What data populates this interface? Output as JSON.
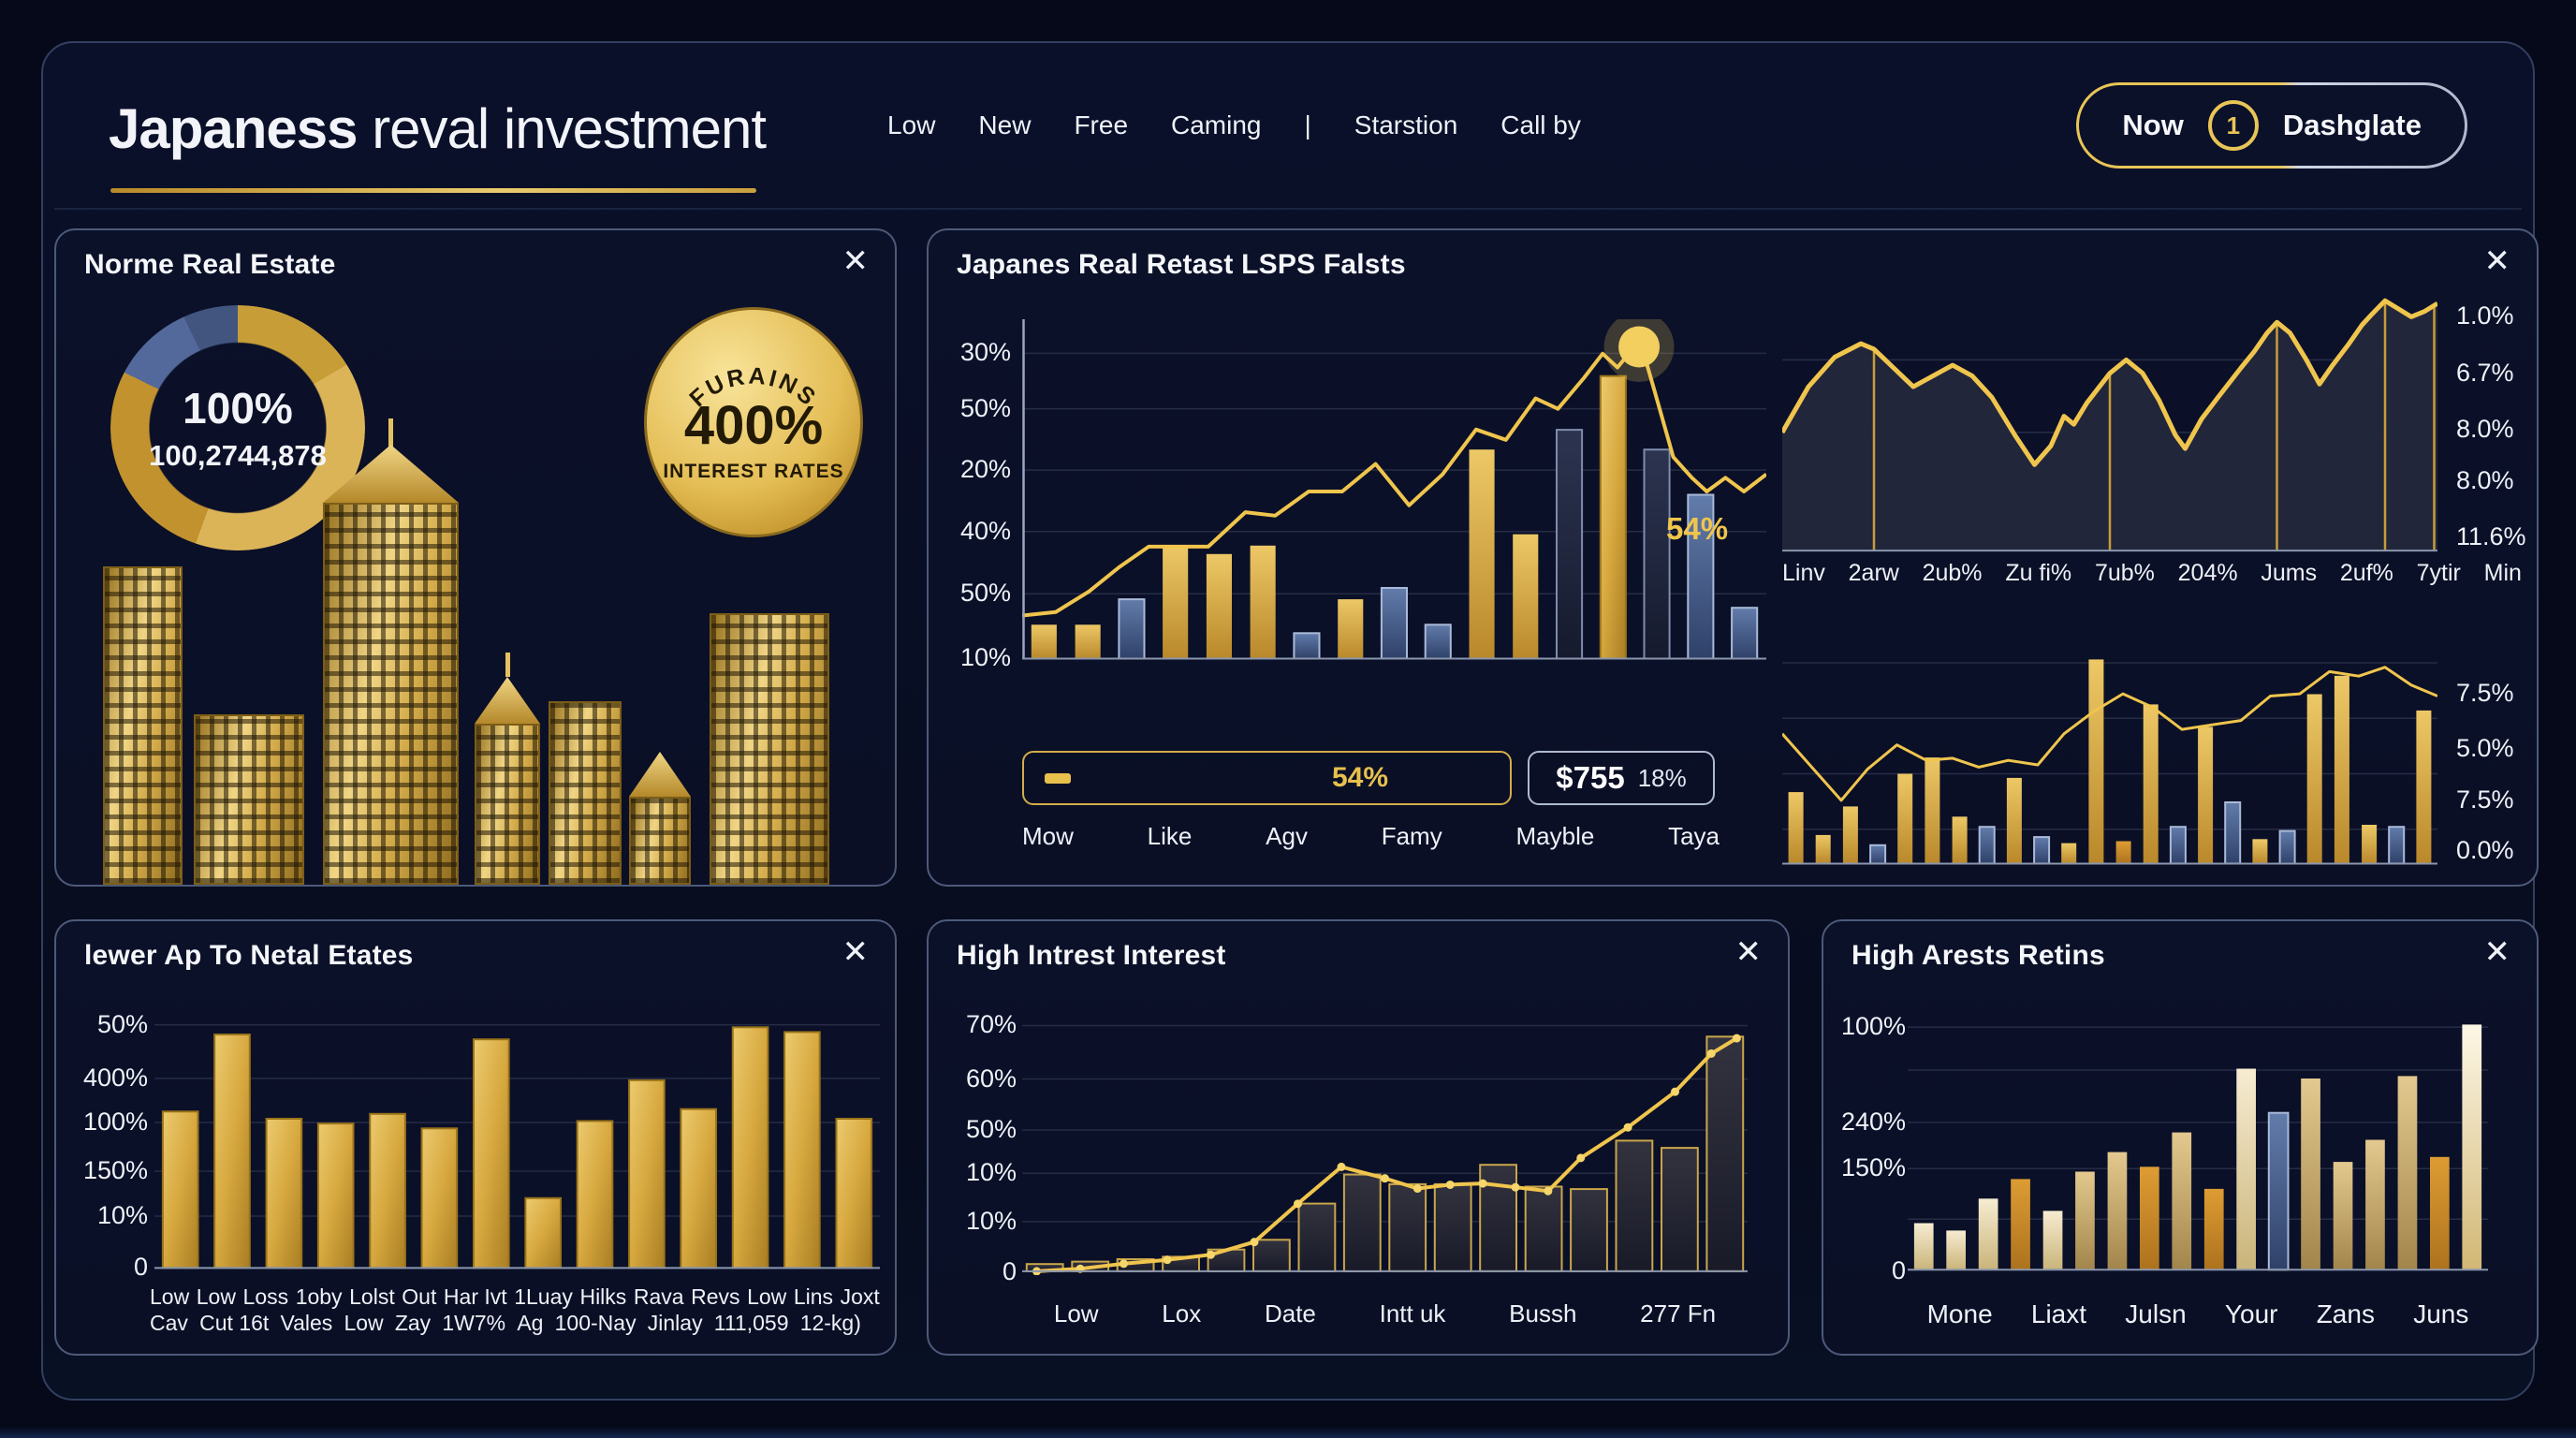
{
  "theme": {
    "gold": "#e9c557",
    "page_bg": "#05091a",
    "card_bg": "#0b1129",
    "blue_bar": "#54719f",
    "text": "#f2f4f9"
  },
  "ui": {
    "close_icon": "✕"
  },
  "header": {
    "title_bold": "Japaness",
    "title_rest": "reval investment",
    "nav": [
      "Low",
      "New",
      "Free",
      "Caming",
      "|",
      "Starstion",
      "Call by"
    ],
    "button": {
      "left": "Now",
      "badge": "1",
      "right": "Dashglate"
    }
  },
  "cards": {
    "home": {
      "title": "Norme Real Estate",
      "donut": {
        "percent": "100%",
        "value": "100,2744,878",
        "ring_gold": "#d4a93f",
        "ring_blue": "#4c66a0"
      },
      "badge": {
        "line1": "FURAINS",
        "line2": "400%",
        "line3": "INTEREST RATES"
      }
    },
    "market": {
      "title": "Japanes Real Retast LSPS Falsts",
      "left_chart": {
        "type": "bar-line",
        "y_labels": [
          "30%",
          "50%",
          "20%",
          "40%",
          "50%",
          "10%"
        ],
        "x_labels": [
          "Mow",
          "Like",
          "Agv",
          "Famy",
          "Mayble",
          "Taya"
        ],
        "annotation": "54%",
        "bars": {
          "values": [
            0.12,
            0.12,
            0.21,
            0.4,
            0.37,
            0.4,
            0.09,
            0.21,
            0.25,
            0.12,
            0.74,
            0.44,
            0.81,
            1.0,
            0.74,
            0.58,
            0.18
          ],
          "colors": [
            "gold",
            "gold",
            "blue",
            "gold",
            "gold",
            "gold",
            "blue",
            "gold",
            "blue",
            "blue",
            "gold",
            "gold",
            "navy",
            "goldtex",
            "navy",
            "blue",
            "blue"
          ]
        },
        "line": [
          [
            0,
            0.86
          ],
          [
            0.045,
            0.85
          ],
          [
            0.09,
            0.79
          ],
          [
            0.13,
            0.72
          ],
          [
            0.17,
            0.66
          ],
          [
            0.25,
            0.66
          ],
          [
            0.3,
            0.56
          ],
          [
            0.34,
            0.57
          ],
          [
            0.385,
            0.5
          ],
          [
            0.43,
            0.5
          ],
          [
            0.475,
            0.42
          ],
          [
            0.52,
            0.54
          ],
          [
            0.565,
            0.45
          ],
          [
            0.61,
            0.32
          ],
          [
            0.65,
            0.35
          ],
          [
            0.69,
            0.23
          ],
          [
            0.72,
            0.26
          ],
          [
            0.755,
            0.17
          ],
          [
            0.78,
            0.1
          ],
          [
            0.8,
            0.14
          ],
          [
            0.815,
            0.1
          ],
          [
            0.83,
            0.06
          ],
          [
            0.85,
            0.21
          ],
          [
            0.875,
            0.4
          ],
          [
            0.9,
            0.46
          ],
          [
            0.92,
            0.5
          ],
          [
            0.945,
            0.46
          ],
          [
            0.97,
            0.5
          ],
          [
            1.0,
            0.45
          ]
        ]
      },
      "controls": {
        "range": {
          "value": "54%"
        },
        "price": {
          "amount": "$755",
          "change": "18%"
        }
      },
      "right_top": {
        "type": "area",
        "x_labels": [
          "Linv",
          "2arw",
          "2ub%",
          "Zu fi%",
          "7ub%",
          "204%",
          "Jums",
          "2uf%",
          "7ytir",
          "Min"
        ],
        "y_labels": [
          "1.0%",
          "6.7%",
          "8.0%",
          "8.0%",
          "11.6%"
        ],
        "area": [
          [
            0,
            0.55
          ],
          [
            0.04,
            0.38
          ],
          [
            0.08,
            0.27
          ],
          [
            0.12,
            0.22
          ],
          [
            0.14,
            0.24
          ],
          [
            0.17,
            0.31
          ],
          [
            0.2,
            0.38
          ],
          [
            0.23,
            0.34
          ],
          [
            0.26,
            0.3
          ],
          [
            0.29,
            0.34
          ],
          [
            0.32,
            0.42
          ],
          [
            0.355,
            0.56
          ],
          [
            0.385,
            0.67
          ],
          [
            0.41,
            0.6
          ],
          [
            0.43,
            0.49
          ],
          [
            0.445,
            0.52
          ],
          [
            0.465,
            0.44
          ],
          [
            0.5,
            0.33
          ],
          [
            0.525,
            0.28
          ],
          [
            0.55,
            0.33
          ],
          [
            0.575,
            0.43
          ],
          [
            0.6,
            0.56
          ],
          [
            0.615,
            0.61
          ],
          [
            0.64,
            0.5
          ],
          [
            0.665,
            0.42
          ],
          [
            0.7,
            0.31
          ],
          [
            0.72,
            0.25
          ],
          [
            0.74,
            0.18
          ],
          [
            0.755,
            0.14
          ],
          [
            0.775,
            0.18
          ],
          [
            0.8,
            0.28
          ],
          [
            0.82,
            0.37
          ],
          [
            0.84,
            0.3
          ],
          [
            0.865,
            0.22
          ],
          [
            0.885,
            0.15
          ],
          [
            0.9,
            0.11
          ],
          [
            0.92,
            0.06
          ],
          [
            0.94,
            0.09
          ],
          [
            0.96,
            0.12
          ],
          [
            0.98,
            0.1
          ],
          [
            1.0,
            0.07
          ]
        ],
        "dividers": [
          [
            0.14,
            0.24
          ],
          [
            0.5,
            0.33
          ],
          [
            0.755,
            0.14
          ],
          [
            0.92,
            0.06
          ],
          [
            0.995,
            0.07
          ]
        ]
      },
      "right_bottom": {
        "type": "bar-line",
        "y_labels": [
          "7.5%",
          "5.0%",
          "7.5%",
          "0.0%"
        ],
        "bars": {
          "values": [
            0.35,
            0.14,
            0.28,
            0.09,
            0.44,
            0.52,
            0.23,
            0.18,
            0.42,
            0.13,
            0.1,
            1.0,
            0.11,
            0.78,
            0.18,
            0.67,
            0.3,
            0.12,
            0.16,
            0.83,
            0.92,
            0.19,
            0.18,
            0.75
          ],
          "colors": [
            "gold",
            "gold",
            "gold",
            "blue",
            "gold",
            "gold",
            "gold",
            "blue",
            "gold",
            "blue",
            "gold",
            "gold",
            "orange",
            "gold",
            "blue",
            "gold",
            "blue",
            "gold",
            "blue",
            "gold",
            "gold",
            "gold",
            "blue",
            "gold"
          ]
        },
        "line": [
          [
            0,
            0.4
          ],
          [
            0.045,
            0.55
          ],
          [
            0.09,
            0.7
          ],
          [
            0.13,
            0.56
          ],
          [
            0.175,
            0.45
          ],
          [
            0.22,
            0.52
          ],
          [
            0.26,
            0.51
          ],
          [
            0.3,
            0.55
          ],
          [
            0.345,
            0.52
          ],
          [
            0.39,
            0.54
          ],
          [
            0.43,
            0.4
          ],
          [
            0.475,
            0.3
          ],
          [
            0.52,
            0.22
          ],
          [
            0.565,
            0.28
          ],
          [
            0.61,
            0.38
          ],
          [
            0.655,
            0.36
          ],
          [
            0.7,
            0.34
          ],
          [
            0.745,
            0.23
          ],
          [
            0.79,
            0.22
          ],
          [
            0.835,
            0.12
          ],
          [
            0.88,
            0.14
          ],
          [
            0.92,
            0.1
          ],
          [
            0.96,
            0.18
          ],
          [
            1.0,
            0.23
          ]
        ]
      }
    },
    "lower": {
      "title": "lewer Ap To Netal Etates",
      "type": "bar",
      "y_labels": [
        "50%",
        "400%",
        "100%",
        "150%",
        "10%",
        "0"
      ],
      "bars": {
        "values": [
          0.65,
          0.97,
          0.62,
          0.6,
          0.64,
          0.58,
          0.95,
          0.29,
          0.61,
          0.78,
          0.66,
          1.0,
          0.98,
          0.62
        ],
        "color": "goldtex"
      },
      "x_labels_top": [
        "Low",
        "Low",
        "Loss",
        "1oby",
        "Lolst",
        "Out",
        "Har Ivt",
        "1Luay",
        "Hilks",
        "Rava",
        "Revs",
        "Low",
        "Lins",
        "Joxt"
      ],
      "x_labels_bottom": [
        "Cav",
        "Cut 16t",
        "Vales",
        "Low",
        "Zay",
        "1W7%",
        "Ag",
        "100-Nay",
        "Jinlay",
        "111,059",
        "12-kg)"
      ]
    },
    "interest": {
      "title": "High Intrest Interest",
      "type": "bar-line",
      "y_labels": [
        "70%",
        "60%",
        "50%",
        "10%",
        "10%",
        "0"
      ],
      "x_labels": [
        "Low",
        "Lox",
        "Date",
        "Intt uk",
        "Bussh",
        "277 Fn"
      ],
      "bars": {
        "values": [
          0.03,
          0.04,
          0.05,
          0.06,
          0.09,
          0.13,
          0.28,
          0.4,
          0.36,
          0.36,
          0.44,
          0.35,
          0.34,
          0.54,
          0.51,
          0.97
        ],
        "color": "dark"
      },
      "line": [
        [
          0.02,
          0.985
        ],
        [
          0.08,
          0.975
        ],
        [
          0.14,
          0.955
        ],
        [
          0.2,
          0.94
        ],
        [
          0.26,
          0.92
        ],
        [
          0.32,
          0.87
        ],
        [
          0.38,
          0.72
        ],
        [
          0.44,
          0.575
        ],
        [
          0.5,
          0.62
        ],
        [
          0.545,
          0.66
        ],
        [
          0.59,
          0.645
        ],
        [
          0.635,
          0.64
        ],
        [
          0.68,
          0.655
        ],
        [
          0.725,
          0.67
        ],
        [
          0.77,
          0.54
        ],
        [
          0.835,
          0.42
        ],
        [
          0.9,
          0.28
        ],
        [
          0.95,
          0.13
        ],
        [
          0.985,
          0.07
        ]
      ]
    },
    "returns": {
      "title": "High Arests Retins",
      "type": "bar",
      "y_labels": [
        "100%",
        "240%",
        "150%",
        "0"
      ],
      "x_labels": [
        "Mone",
        "Liaxt",
        "Julsn",
        "Your",
        "Zans",
        "Juns"
      ],
      "bars": {
        "values": [
          0.19,
          0.16,
          0.29,
          0.37,
          0.24,
          0.4,
          0.48,
          0.42,
          0.56,
          0.33,
          0.82,
          0.64,
          0.78,
          0.44,
          0.53,
          0.79,
          0.46,
          1.0
        ],
        "colors": [
          "cream",
          "cream",
          "cream",
          "orange",
          "cream",
          "tan",
          "tan",
          "orange",
          "tan",
          "orange",
          "cream",
          "blue",
          "tan",
          "tan",
          "tan",
          "tan",
          "orange",
          "light"
        ]
      }
    }
  }
}
